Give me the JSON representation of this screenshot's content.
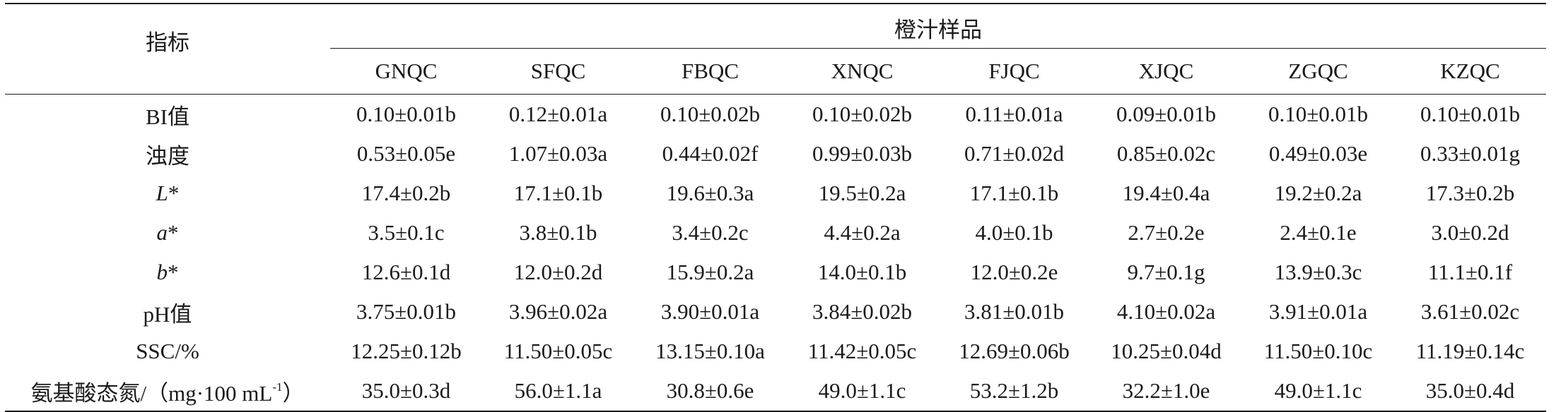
{
  "table": {
    "index_header": "指标",
    "group_header": "橙汁样品",
    "samples": [
      "GNQC",
      "SFQC",
      "FBQC",
      "XNQC",
      "FJQC",
      "XJQC",
      "ZGQC",
      "KZQC"
    ],
    "rows": [
      {
        "label": "BI值",
        "label_italic": "",
        "label_suffix": "",
        "values": [
          "0.10±0.01b",
          "0.12±0.01a",
          "0.10±0.02b",
          "0.10±0.02b",
          "0.11±0.01a",
          "0.09±0.01b",
          "0.10±0.01b",
          "0.10±0.01b"
        ]
      },
      {
        "label": "浊度",
        "label_italic": "",
        "label_suffix": "",
        "values": [
          "0.53±0.05e",
          "1.07±0.03a",
          "0.44±0.02f",
          "0.99±0.03b",
          "0.71±0.02d",
          "0.85±0.02c",
          "0.49±0.03e",
          "0.33±0.01g"
        ]
      },
      {
        "label": "",
        "label_italic": "L",
        "label_suffix": "*",
        "values": [
          "17.4±0.2b",
          "17.1±0.1b",
          "19.6±0.3a",
          "19.5±0.2a",
          "17.1±0.1b",
          "19.4±0.4a",
          "19.2±0.2a",
          "17.3±0.2b"
        ]
      },
      {
        "label": "",
        "label_italic": "a",
        "label_suffix": "*",
        "values": [
          "3.5±0.1c",
          "3.8±0.1b",
          "3.4±0.2c",
          "4.4±0.2a",
          "4.0±0.1b",
          "2.7±0.2e",
          "2.4±0.1e",
          "3.0±0.2d"
        ]
      },
      {
        "label": "",
        "label_italic": "b",
        "label_suffix": "*",
        "values": [
          "12.6±0.1d",
          "12.0±0.2d",
          "15.9±0.2a",
          "14.0±0.1b",
          "12.0±0.2e",
          "9.7±0.1g",
          "13.9±0.3c",
          "11.1±0.1f"
        ]
      },
      {
        "label": "pH值",
        "label_italic": "",
        "label_suffix": "",
        "values": [
          "3.75±0.01b",
          "3.96±0.02a",
          "3.90±0.01a",
          "3.84±0.02b",
          "3.81±0.01b",
          "4.10±0.02a",
          "3.91±0.01a",
          "3.61±0.02c"
        ]
      },
      {
        "label": "SSC/%",
        "label_italic": "",
        "label_suffix": "",
        "values": [
          "12.25±0.12b",
          "11.50±0.05c",
          "13.15±0.10a",
          "11.42±0.05c",
          "12.69±0.06b",
          "10.25±0.04d",
          "11.50±0.10c",
          "11.19±0.14c"
        ]
      },
      {
        "label": "氨基酸态氮/（mg·100 mL",
        "label_italic": "",
        "label_suffix": "",
        "label_sup": "-1",
        "label_tail": "）",
        "values": [
          "35.0±0.3d",
          "56.0±1.1a",
          "30.8±0.6e",
          "49.0±1.1c",
          "53.2±1.2b",
          "32.2±1.0e",
          "49.0±1.1c",
          "35.0±0.4d"
        ]
      }
    ]
  }
}
